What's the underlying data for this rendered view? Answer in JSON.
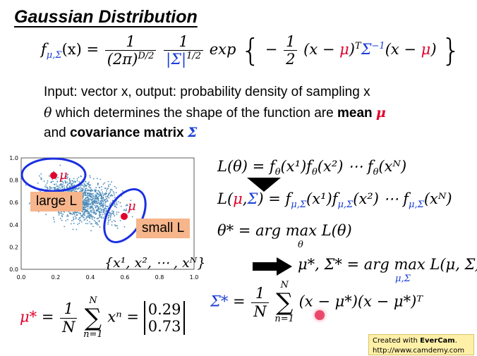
{
  "title": "Gaussian Distribution",
  "formula": {
    "lhs": "f",
    "lhs_sub": "μ,Σ",
    "lhs_arg": "(x) =",
    "frac1_num": "1",
    "frac1_den": "(2π)",
    "frac1_den_exp": "D/2",
    "frac2_num": "1",
    "frac2_den": "|Σ|",
    "frac2_den_exp": "1/2",
    "exp_word": "exp",
    "half_num": "1",
    "half_den": "2",
    "minus": "−",
    "body_a": "(x − ",
    "mu": "μ",
    "body_b": ")",
    "T": "T",
    "sigma": "Σ",
    "inv": "−1",
    "body_c": "(x − ",
    "body_d": ")"
  },
  "text": {
    "line1": "Input: vector x, output: probability density of sampling x",
    "line2_theta": "θ",
    "line2_rest": " which determines the shape of the function are ",
    "line2_mean": "mean",
    "line2_mu": "μ",
    "line3_and": "and ",
    "line3_cov": "covariance matrix",
    "line3_sigma": "Σ"
  },
  "plot": {
    "x_ticks": [
      "0.0",
      "0.2",
      "0.4",
      "0.6",
      "0.8",
      "1.0"
    ],
    "y_ticks": [
      "0.0",
      "0.2",
      "0.4",
      "0.6",
      "0.8",
      "1.0"
    ],
    "large_label": "large L",
    "small_label": "small L",
    "mu_label": "μ",
    "samples": "{x¹, x², ⋯ , xᴺ}",
    "color_points": "#4a8ab8",
    "color_ellipse": "#1a2fe0",
    "color_center": "#e0002a",
    "color_callout": "#f6b58b"
  },
  "right": {
    "L_theta": "L(θ) = f",
    "L_theta_rest": "(x¹)f",
    "L_theta_rest2": "(x²) ⋯ f",
    "L_theta_rest3": "(xᴺ)",
    "theta": "θ",
    "L_mu": "L(",
    "mu": "μ",
    "comma": ",",
    "sigma": "Σ",
    "L_mu_rest": ") = f",
    "sub_musig": "μ,Σ",
    "L_mu_r1": "(x¹)f",
    "L_mu_r2": "(x²) ⋯ f",
    "L_mu_r3": "(xᴺ)",
    "theta_star": "θ* = arg max L(θ)",
    "argmax_under": "θ",
    "musig_star": "μ*, Σ* = arg max L(μ, Σ)",
    "argmax_under2": "μ,Σ"
  },
  "bottom": {
    "mu_star": "μ*",
    "eq": " = ",
    "frac_num": "1",
    "frac_den": "N",
    "sum_top": "N",
    "sum_bot": "n=1",
    "sum_sym": "∑",
    "xn": "xⁿ = ",
    "vec_top": "0.29",
    "vec_bot": "0.73",
    "sigma_star": "Σ*",
    "sigma_body": "(x − μ*)(x − μ*)ᵀ"
  },
  "watermark": {
    "line1_a": "Created with ",
    "line1_b": "EverCam",
    "line1_c": ".",
    "line2": "http://www.camdemy.com"
  }
}
